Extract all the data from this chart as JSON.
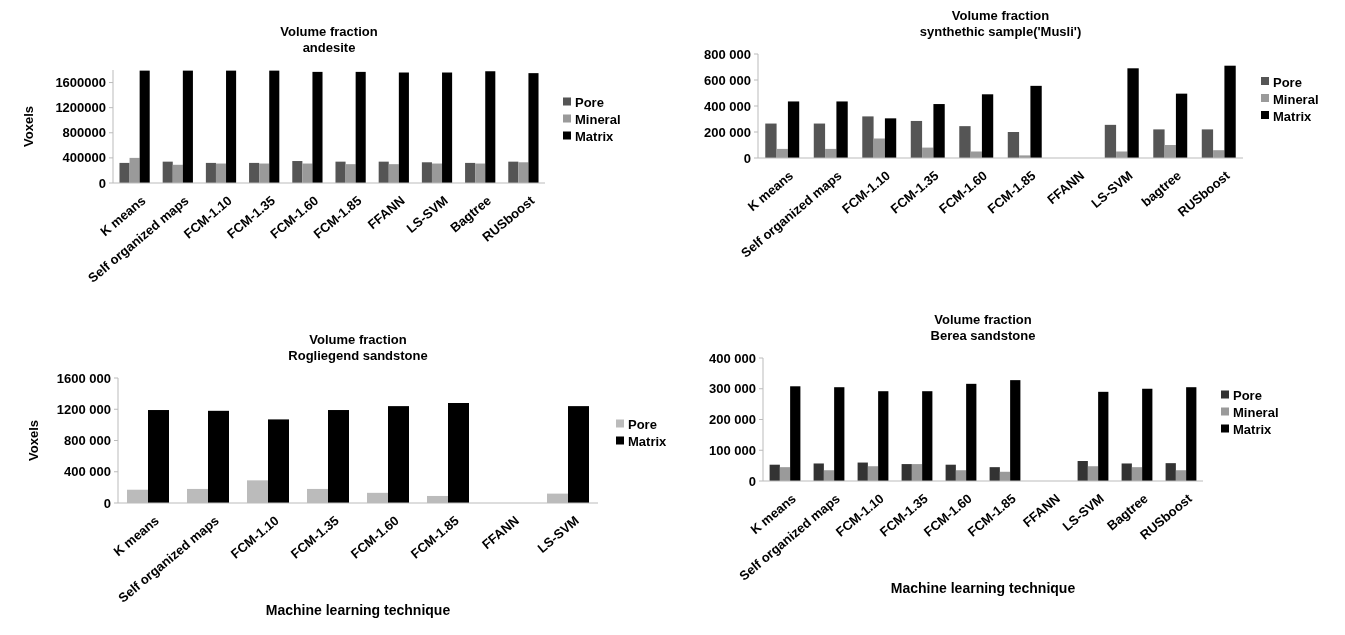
{
  "chart_data": [
    {
      "type": "bar",
      "title": "Volume fraction",
      "subtitle": "andesite",
      "ylabel": "Voxels",
      "categories": [
        "K means",
        "Self organized maps",
        "FCM-1.10",
        "FCM-1.35",
        "FCM-1.60",
        "FCM-1.85",
        "FFANN",
        "LS-SVM",
        "Bagtree",
        "RUSboost"
      ],
      "ylim": [
        0,
        1800000
      ],
      "yticks": [
        0,
        400000,
        800000,
        1200000,
        1600000
      ],
      "legend": "right",
      "grid": false,
      "series": [
        {
          "name": "Pore",
          "color": "#555555",
          "values": [
            320000,
            340000,
            320000,
            320000,
            350000,
            340000,
            340000,
            330000,
            320000,
            340000
          ]
        },
        {
          "name": "Mineral",
          "color": "#9a9a9a",
          "values": [
            400000,
            290000,
            310000,
            310000,
            310000,
            300000,
            300000,
            310000,
            310000,
            330000
          ]
        },
        {
          "name": "Matrix",
          "color": "#000000",
          "values": [
            1790000,
            1790000,
            1790000,
            1790000,
            1770000,
            1770000,
            1760000,
            1760000,
            1780000,
            1750000
          ]
        }
      ]
    },
    {
      "type": "bar",
      "title": "Volume fraction",
      "subtitle": "synthethic sample('Musli')",
      "categories": [
        "K means",
        "Self organized maps",
        "FCM-1.10",
        "FCM-1.35",
        "FCM-1.60",
        "FCM-1.85",
        "FFANN",
        "LS-SVM",
        "bagtree",
        "RUSboost"
      ],
      "ylim": [
        0,
        800000
      ],
      "yticks": [
        0,
        {
          "value": 200000,
          "label": "200 000"
        },
        {
          "value": 400000,
          "label": "400 000"
        },
        {
          "value": 600000,
          "label": "600 000"
        },
        {
          "value": 800000,
          "label": "800 000"
        }
      ],
      "legend": "right",
      "grid": false,
      "series": [
        {
          "name": "Pore",
          "color": "#555555",
          "values": [
            265000,
            265000,
            320000,
            285000,
            245000,
            200000,
            null,
            255000,
            220000,
            220000
          ]
        },
        {
          "name": "Mineral",
          "color": "#9a9a9a",
          "values": [
            70000,
            70000,
            150000,
            80000,
            50000,
            20000,
            null,
            50000,
            100000,
            60000
          ]
        },
        {
          "name": "Matrix",
          "color": "#000000",
          "values": [
            435000,
            435000,
            305000,
            415000,
            490000,
            555000,
            null,
            690000,
            495000,
            710000
          ]
        }
      ]
    },
    {
      "type": "bar",
      "title": "Volume fraction",
      "subtitle": "Rogliegend sandstone",
      "ylabel": "Voxels",
      "xlabel": "Machine learning technique",
      "categories": [
        "K means",
        "Self organized maps",
        "FCM-1.10",
        "FCM-1.35",
        "FCM-1.60",
        "FCM-1.85",
        "FFANN",
        "LS-SVM"
      ],
      "ylim": [
        0,
        1600000
      ],
      "yticks": [
        0,
        {
          "value": 400000,
          "label": "400 000"
        },
        {
          "value": 800000,
          "label": "800 000"
        },
        {
          "value": 1200000,
          "label": "1200 000"
        },
        {
          "value": 1600000,
          "label": "1600 000"
        }
      ],
      "legend": "right",
      "grid": false,
      "series": [
        {
          "name": "Pore",
          "color": "#bbbbbb",
          "values": [
            170000,
            180000,
            290000,
            180000,
            130000,
            90000,
            null,
            120000
          ]
        },
        {
          "name": "Matrix",
          "color": "#000000",
          "values": [
            1190000,
            1180000,
            1070000,
            1190000,
            1240000,
            1280000,
            null,
            1240000
          ]
        }
      ]
    },
    {
      "type": "bar",
      "title": "Volume fraction",
      "subtitle": "Berea sandstone",
      "xlabel": "Machine learning technique",
      "categories": [
        "K means",
        "Self organized maps",
        "FCM-1.10",
        "FCM-1.35",
        "FCM-1.60",
        "FCM-1.85",
        "FFANN",
        "LS-SVM",
        "Bagtree",
        "RUSboost"
      ],
      "ylim": [
        0,
        400000
      ],
      "yticks": [
        0,
        {
          "value": 100000,
          "label": "100 000"
        },
        {
          "value": 200000,
          "label": "200 000"
        },
        {
          "value": 300000,
          "label": "300 000"
        },
        {
          "value": 400000,
          "label": "400 000"
        }
      ],
      "legend": "right",
      "grid": false,
      "series": [
        {
          "name": "Pore",
          "color": "#333333",
          "values": [
            53000,
            57000,
            60000,
            55000,
            53000,
            45000,
            null,
            65000,
            57000,
            58000
          ]
        },
        {
          "name": "Mineral",
          "color": "#9a9a9a",
          "values": [
            45000,
            35000,
            48000,
            55000,
            35000,
            30000,
            null,
            48000,
            45000,
            35000
          ]
        },
        {
          "name": "Matrix",
          "color": "#000000",
          "values": [
            308000,
            305000,
            292000,
            292000,
            316000,
            328000,
            null,
            290000,
            300000,
            305000
          ]
        }
      ]
    }
  ]
}
